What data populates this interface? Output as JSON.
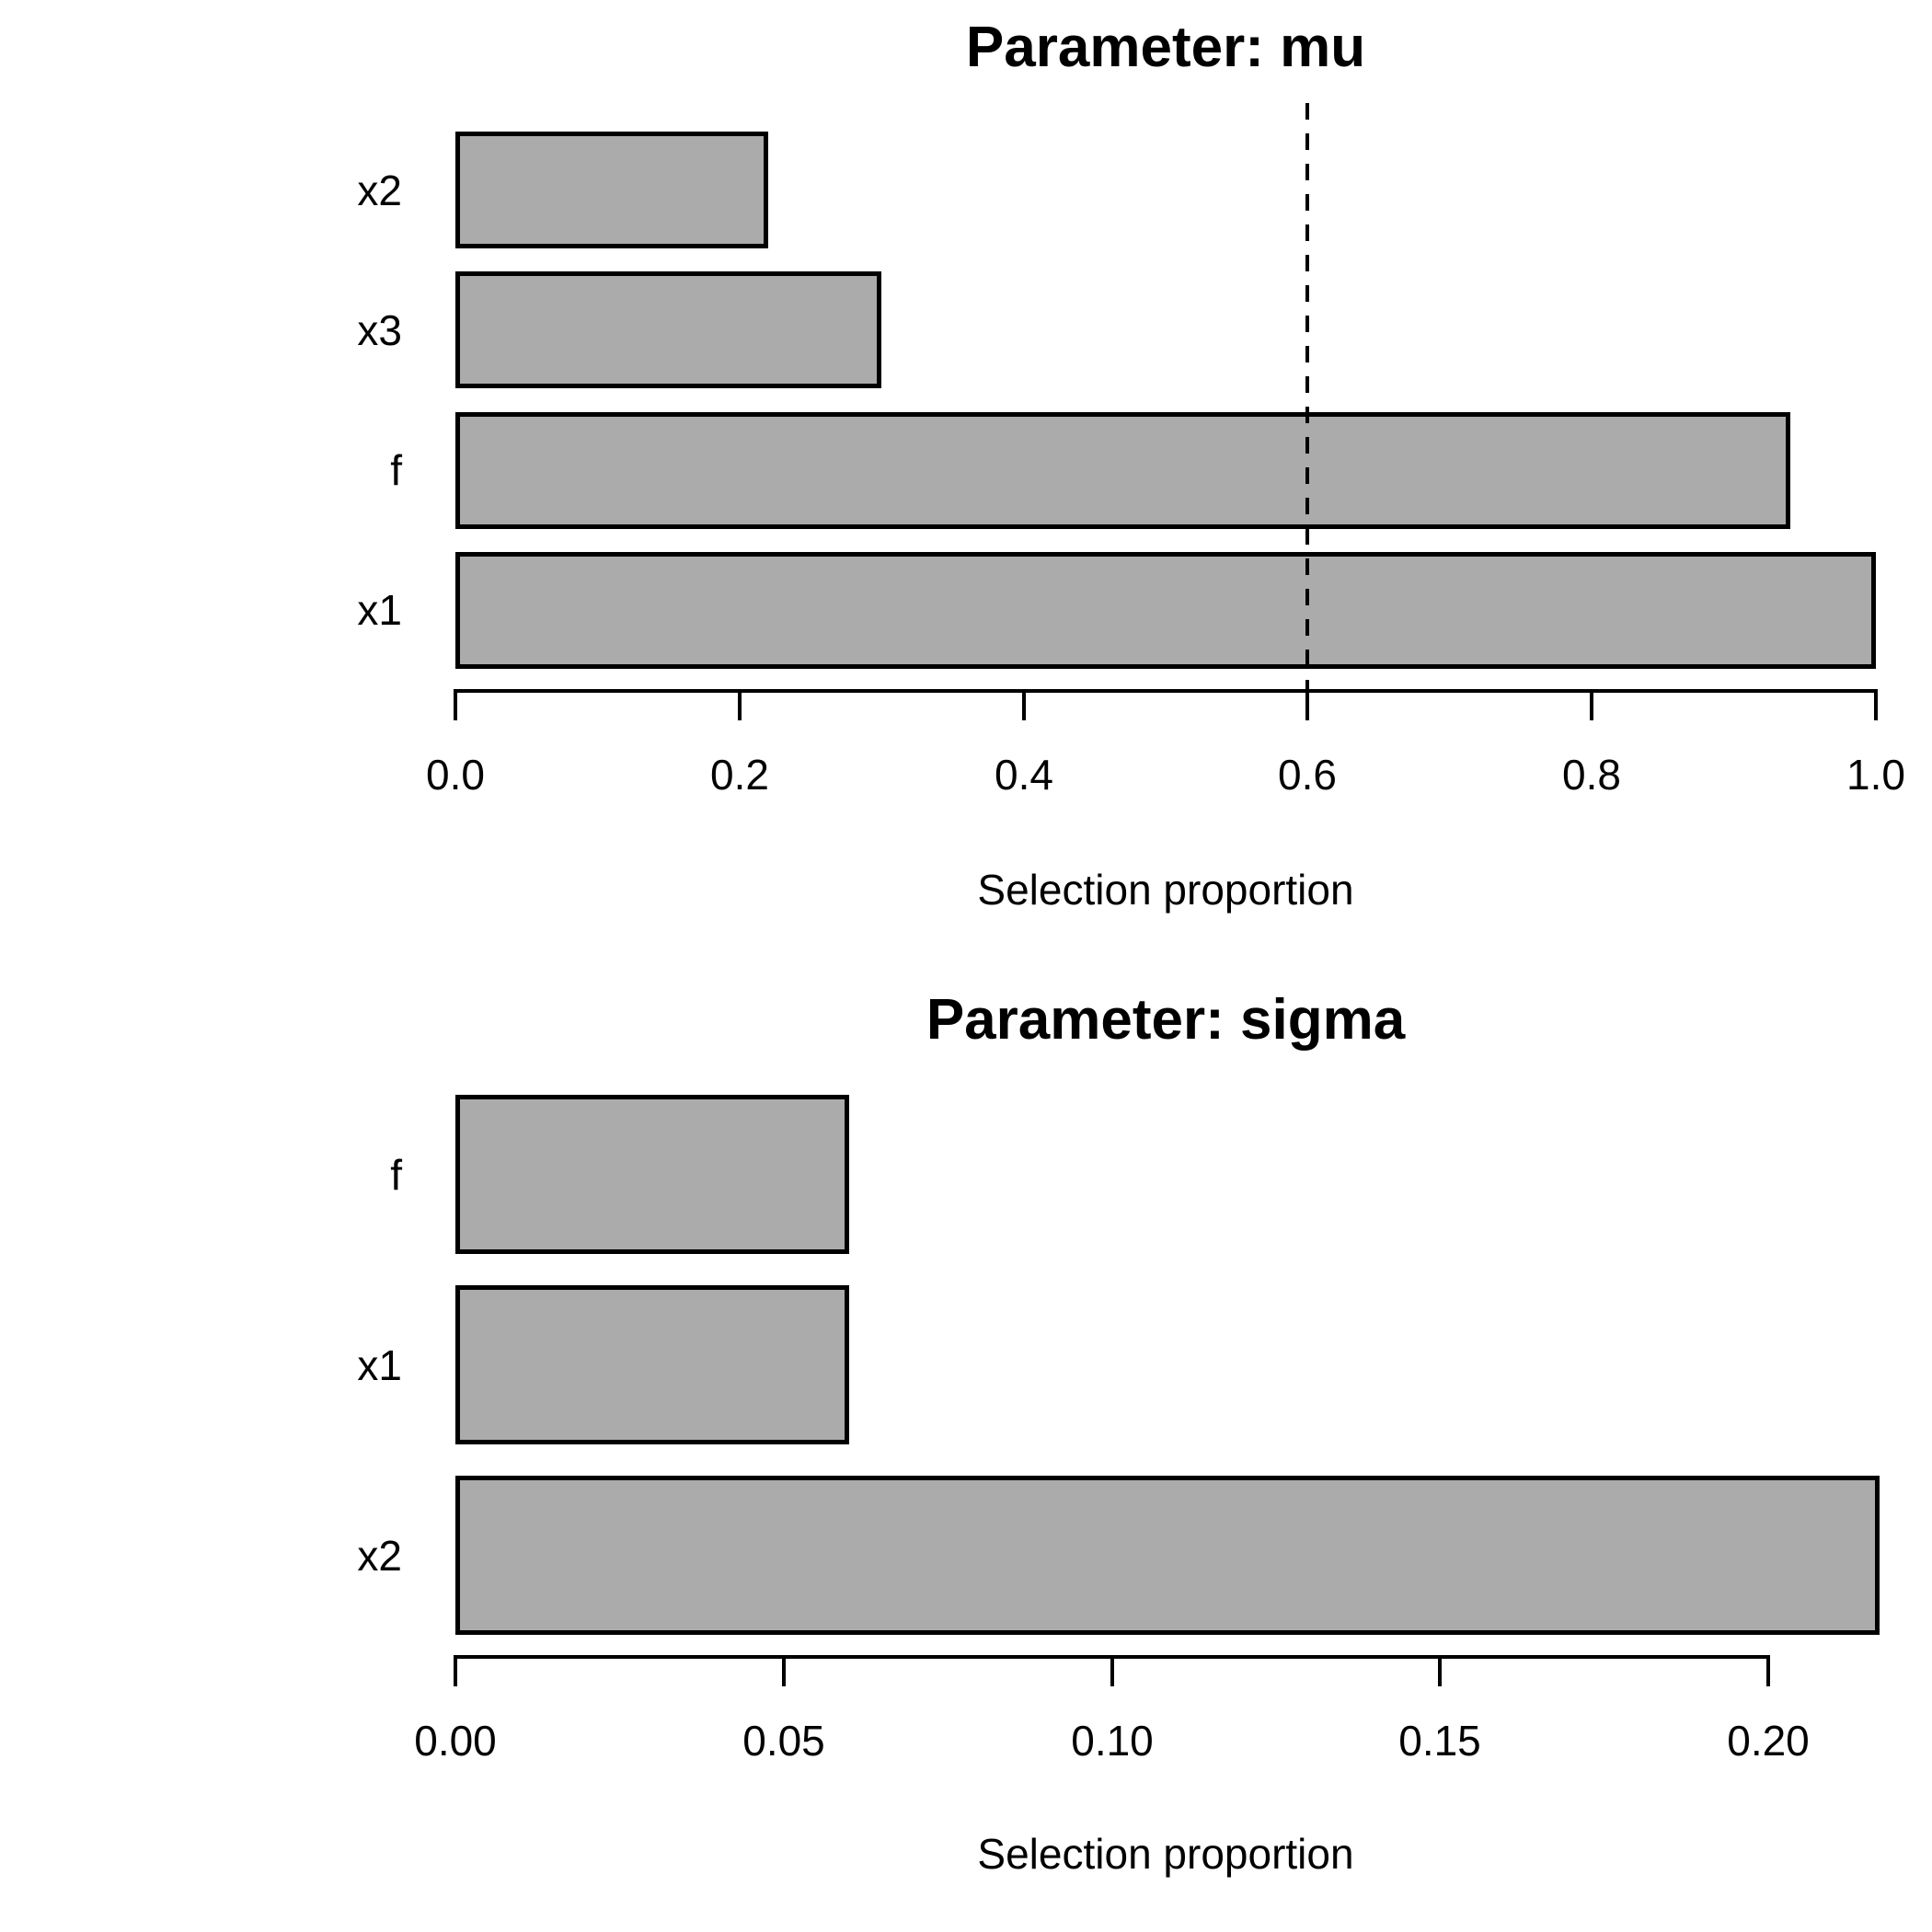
{
  "figure_background": "#ffffff",
  "colors": {
    "bar_fill": "#ababab",
    "bar_border": "#000000",
    "axis": "#000000",
    "text": "#000000",
    "threshold_line": "#000000"
  },
  "chart_data": [
    {
      "type": "bar",
      "orientation": "horizontal",
      "title": "Parameter: mu",
      "xlabel": "Selection proportion",
      "categories_top_to_bottom": [
        "x2",
        "x3",
        "f",
        "x1"
      ],
      "values": [
        0.22,
        0.3,
        0.94,
        1.0
      ],
      "xlim": [
        0.0,
        1.0
      ],
      "x_ticks": [
        {
          "label": "0.0",
          "value": 0.0
        },
        {
          "label": "0.2",
          "value": 0.2
        },
        {
          "label": "0.4",
          "value": 0.4
        },
        {
          "label": "0.6",
          "value": 0.6
        },
        {
          "label": "0.8",
          "value": 0.8
        },
        {
          "label": "1.0",
          "value": 1.0
        }
      ],
      "threshold_dashed_line": 0.6,
      "grid": false,
      "legend": null
    },
    {
      "type": "bar",
      "orientation": "horizontal",
      "title": "Parameter: sigma",
      "xlabel": "Selection proportion",
      "categories_top_to_bottom": [
        "f",
        "x1",
        "x2"
      ],
      "values": [
        0.06,
        0.06,
        0.217
      ],
      "xlim": [
        0.0,
        0.22
      ],
      "x_ticks": [
        {
          "label": "0.00",
          "value": 0.0
        },
        {
          "label": "0.05",
          "value": 0.05
        },
        {
          "label": "0.10",
          "value": 0.1
        },
        {
          "label": "0.15",
          "value": 0.15
        },
        {
          "label": "0.20",
          "value": 0.2
        }
      ],
      "threshold_dashed_line": null,
      "grid": false,
      "legend": null
    }
  ]
}
